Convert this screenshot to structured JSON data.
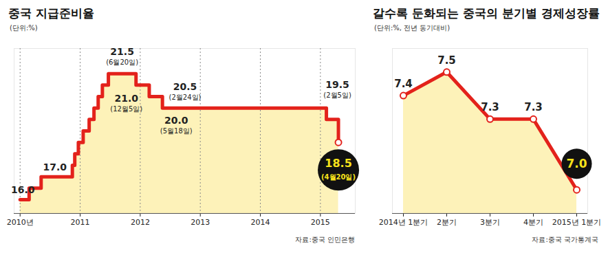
{
  "chart_data": [
    {
      "type": "line",
      "title": "중국 지급준비율",
      "subtitle": "(단위:%)",
      "source": "자료:중국 인민은행",
      "line_style": "step",
      "color": "#e3221b",
      "x": [
        2010.0,
        2010.15,
        2010.35,
        2010.87,
        2010.91,
        2010.97,
        2011.05,
        2011.15,
        2011.23,
        2011.3,
        2011.37,
        2011.47,
        2011.93,
        2012.15,
        2012.37,
        2015.1,
        2015.3
      ],
      "values": [
        16.0,
        16.5,
        17.0,
        17.5,
        18.0,
        18.5,
        19.0,
        19.5,
        20.0,
        20.5,
        21.0,
        21.5,
        21.0,
        20.5,
        20.0,
        19.5,
        18.5
      ],
      "xlim": [
        2009.9,
        2015.58
      ],
      "xticks": [
        {
          "value": 2010,
          "label": "2010년"
        },
        2011,
        2012,
        2013,
        2014,
        2015
      ],
      "ylim": [
        15.4,
        22.6
      ],
      "tick_labels": "x",
      "grid": "x",
      "annotations": [
        {
          "x": 2010.0,
          "value": 16.0,
          "label": "16.0"
        },
        {
          "x": 2010.35,
          "value": 17.0,
          "label": "17.0"
        },
        {
          "x": 2011.47,
          "value": 21.5,
          "label": "21.5",
          "date": "(6월20일)"
        },
        {
          "x": 2011.93,
          "value": 21.0,
          "label": "21.0",
          "date": "(12월5일)"
        },
        {
          "x": 2012.15,
          "value": 20.5,
          "label": "20.5",
          "date": "(2월24일)"
        },
        {
          "x": 2012.37,
          "value": 20.0,
          "label": "20.0",
          "date": "(5월18일)"
        },
        {
          "x": 2015.1,
          "value": 19.5,
          "label": "19.5",
          "date": "(2월5일)"
        },
        {
          "x": 2015.3,
          "value": 18.5,
          "label": "18.5",
          "date": "(4월20일)"
        }
      ]
    },
    {
      "type": "line",
      "title": "갈수록 둔화되는 중국의 분기별 경제성장률",
      "subtitle": "(단위:%, 전년 동기대비)",
      "source": "자료:중국 국가통계국",
      "line_style": "solid",
      "marker": "circle",
      "color": "#e3221b",
      "categories": [
        "2014년 1분기",
        "2분기",
        "3분기",
        "4분기",
        "2015년 1분기"
      ],
      "values": [
        7.4,
        7.5,
        7.3,
        7.3,
        7.0
      ],
      "value_labels": [
        "7.4",
        "7.5",
        "7.3",
        "7.3",
        "7.0"
      ],
      "data_labels": true,
      "ylim": [
        6.9,
        7.6
      ],
      "tick_labels": "x",
      "grid": false
    }
  ]
}
